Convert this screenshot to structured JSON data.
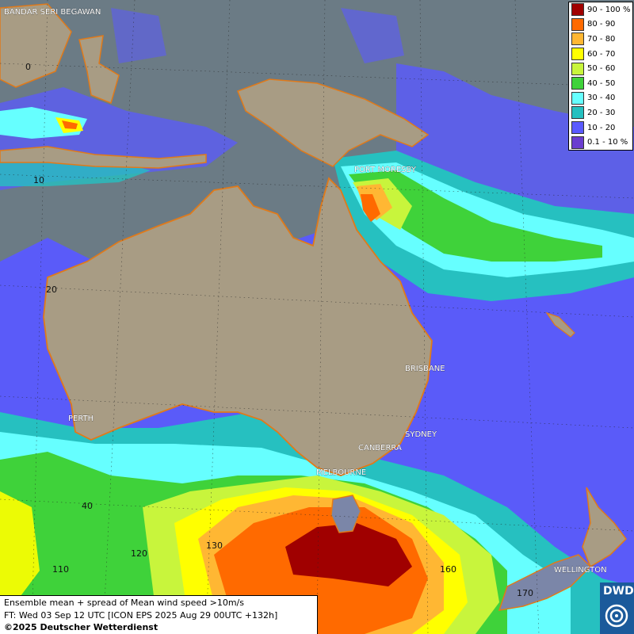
{
  "legend": {
    "title": "",
    "items": [
      {
        "label": "90 - 100 %",
        "color": "#a00000"
      },
      {
        "label": "80 - 90",
        "color": "#ff6a00"
      },
      {
        "label": "70 - 80",
        "color": "#ffb733"
      },
      {
        "label": "60 - 70",
        "color": "#ffff00"
      },
      {
        "label": "50 - 60",
        "color": "#c8f53c"
      },
      {
        "label": "40 - 50",
        "color": "#3fd23a"
      },
      {
        "label": "30 - 40",
        "color": "#66ffff"
      },
      {
        "label": "20 - 30",
        "color": "#26c0c0"
      },
      {
        "label": "10 - 20",
        "color": "#5a5aff"
      },
      {
        "label": "0.1 - 10 %",
        "color": "#6a3dcf"
      }
    ]
  },
  "info": {
    "line1": "Ensemble mean + spread of Mean wind speed >10m/s",
    "line2": "FT: Wed 03 Sep 12 UTC [ICON EPS 2025 Aug 29 00UTC +132h]",
    "line3": "©2025 Deutscher Wetterdienst"
  },
  "logo": {
    "text": "DWD"
  },
  "cities": {
    "bandar": "BANDAR SERI BEGAWAN",
    "port_moresby": "PORT MORESBY",
    "brisbane": "BRISBANE",
    "sydney": "SYDNEY",
    "canberra": "CANBERRA",
    "melbourne": "MELBOURNE",
    "perth": "PERTH",
    "wellington": "WELLINGTON"
  },
  "grid_labels": {
    "lat0": "0",
    "lat10": "10",
    "lat20": "20",
    "lat40": "40",
    "lon110": "110",
    "lon120": "120",
    "lon130": "130",
    "lon160": "160",
    "lon170": "170"
  },
  "colors": {
    "sea": "#6b7b85",
    "land": "#a89c84",
    "coast": "#e07a1a"
  }
}
